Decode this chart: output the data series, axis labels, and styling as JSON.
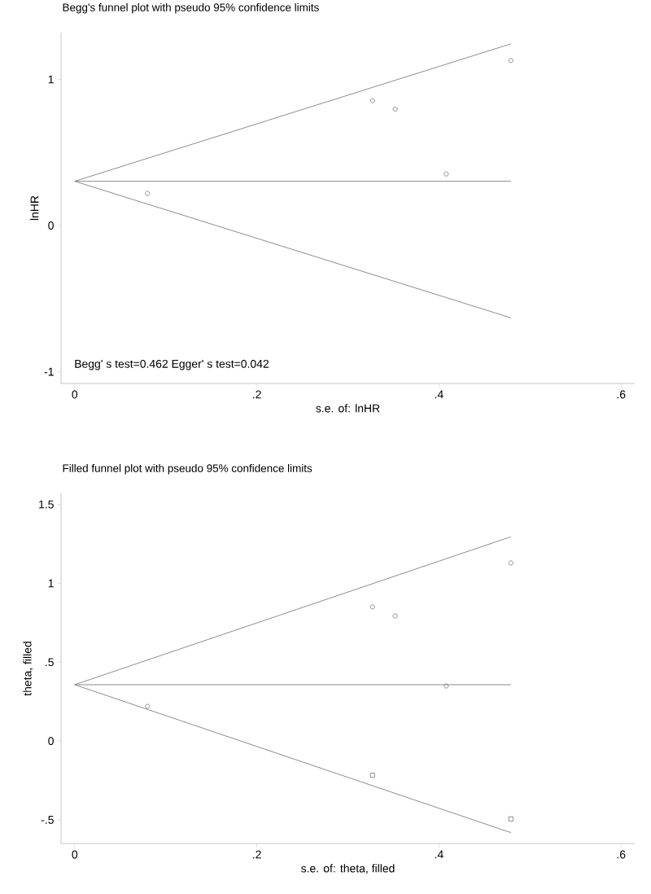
{
  "chart_data": [
    {
      "type": "scatter",
      "title": "Begg's funnel plot with pseudo 95% confidence limits",
      "xlabel": "s.e. of: lnHR",
      "ylabel": "lnHR",
      "xlim": [
        -0.015,
        0.615
      ],
      "ylim": [
        -1.08,
        1.32
      ],
      "xticks": [
        0,
        {
          "value": 0.2,
          "label": ".2"
        },
        {
          "value": 0.4,
          "label": ".4"
        },
        {
          "value": 0.6,
          "label": ".6"
        }
      ],
      "yticks": [
        -1,
        0,
        1
      ],
      "annotations": [
        "Begg' s test=0.462 Egger' s test=0.042"
      ],
      "series": [
        {
          "type": "line",
          "color": "#808080",
          "x": [
            0,
            0.479
          ],
          "values": [
            0.303,
            1.243
          ]
        },
        {
          "type": "line",
          "color": "#808080",
          "x": [
            0,
            0.479
          ],
          "values": [
            0.303,
            0.303
          ]
        },
        {
          "type": "line",
          "color": "#808080",
          "x": [
            0,
            0.479
          ],
          "values": [
            0.303,
            -0.631
          ]
        },
        {
          "type": "scatter",
          "color": "#707070",
          "marker": "circle",
          "x": [
            0.08,
            0.327,
            0.352,
            0.408,
            0.479
          ],
          "values": [
            0.22,
            0.854,
            0.796,
            0.353,
            1.129
          ]
        }
      ]
    },
    {
      "type": "scatter",
      "title": "Filled funnel plot with pseudo 95% confidence limits",
      "xlabel": "s.e. of: theta, filled",
      "ylabel": "theta, filled",
      "xlim": [
        -0.015,
        0.615
      ],
      "ylim": [
        -0.65,
        1.57
      ],
      "xticks": [
        0,
        {
          "value": 0.2,
          "label": ".2"
        },
        {
          "value": 0.4,
          "label": ".4"
        },
        {
          "value": 0.6,
          "label": ".6"
        }
      ],
      "yticks": [
        {
          "value": -0.5,
          "label": "-.5"
        },
        0,
        {
          "value": 0.5,
          "label": ".5"
        },
        1,
        1.5
      ],
      "series": [
        {
          "type": "line",
          "color": "#808080",
          "x": [
            0,
            0.479
          ],
          "values": [
            0.357,
            1.295
          ]
        },
        {
          "type": "line",
          "color": "#808080",
          "x": [
            0,
            0.479
          ],
          "values": [
            0.357,
            0.357
          ]
        },
        {
          "type": "line",
          "color": "#808080",
          "x": [
            0,
            0.479
          ],
          "values": [
            0.357,
            -0.581
          ]
        },
        {
          "type": "scatter",
          "color": "#707070",
          "marker": "circle",
          "x": [
            0.08,
            0.327,
            0.352,
            0.408,
            0.479
          ],
          "values": [
            0.22,
            0.85,
            0.793,
            0.349,
            1.129
          ]
        },
        {
          "type": "scatter",
          "color": "#707070",
          "marker": "square",
          "x": [
            0.327,
            0.479
          ],
          "values": [
            -0.217,
            -0.494
          ]
        }
      ]
    }
  ]
}
